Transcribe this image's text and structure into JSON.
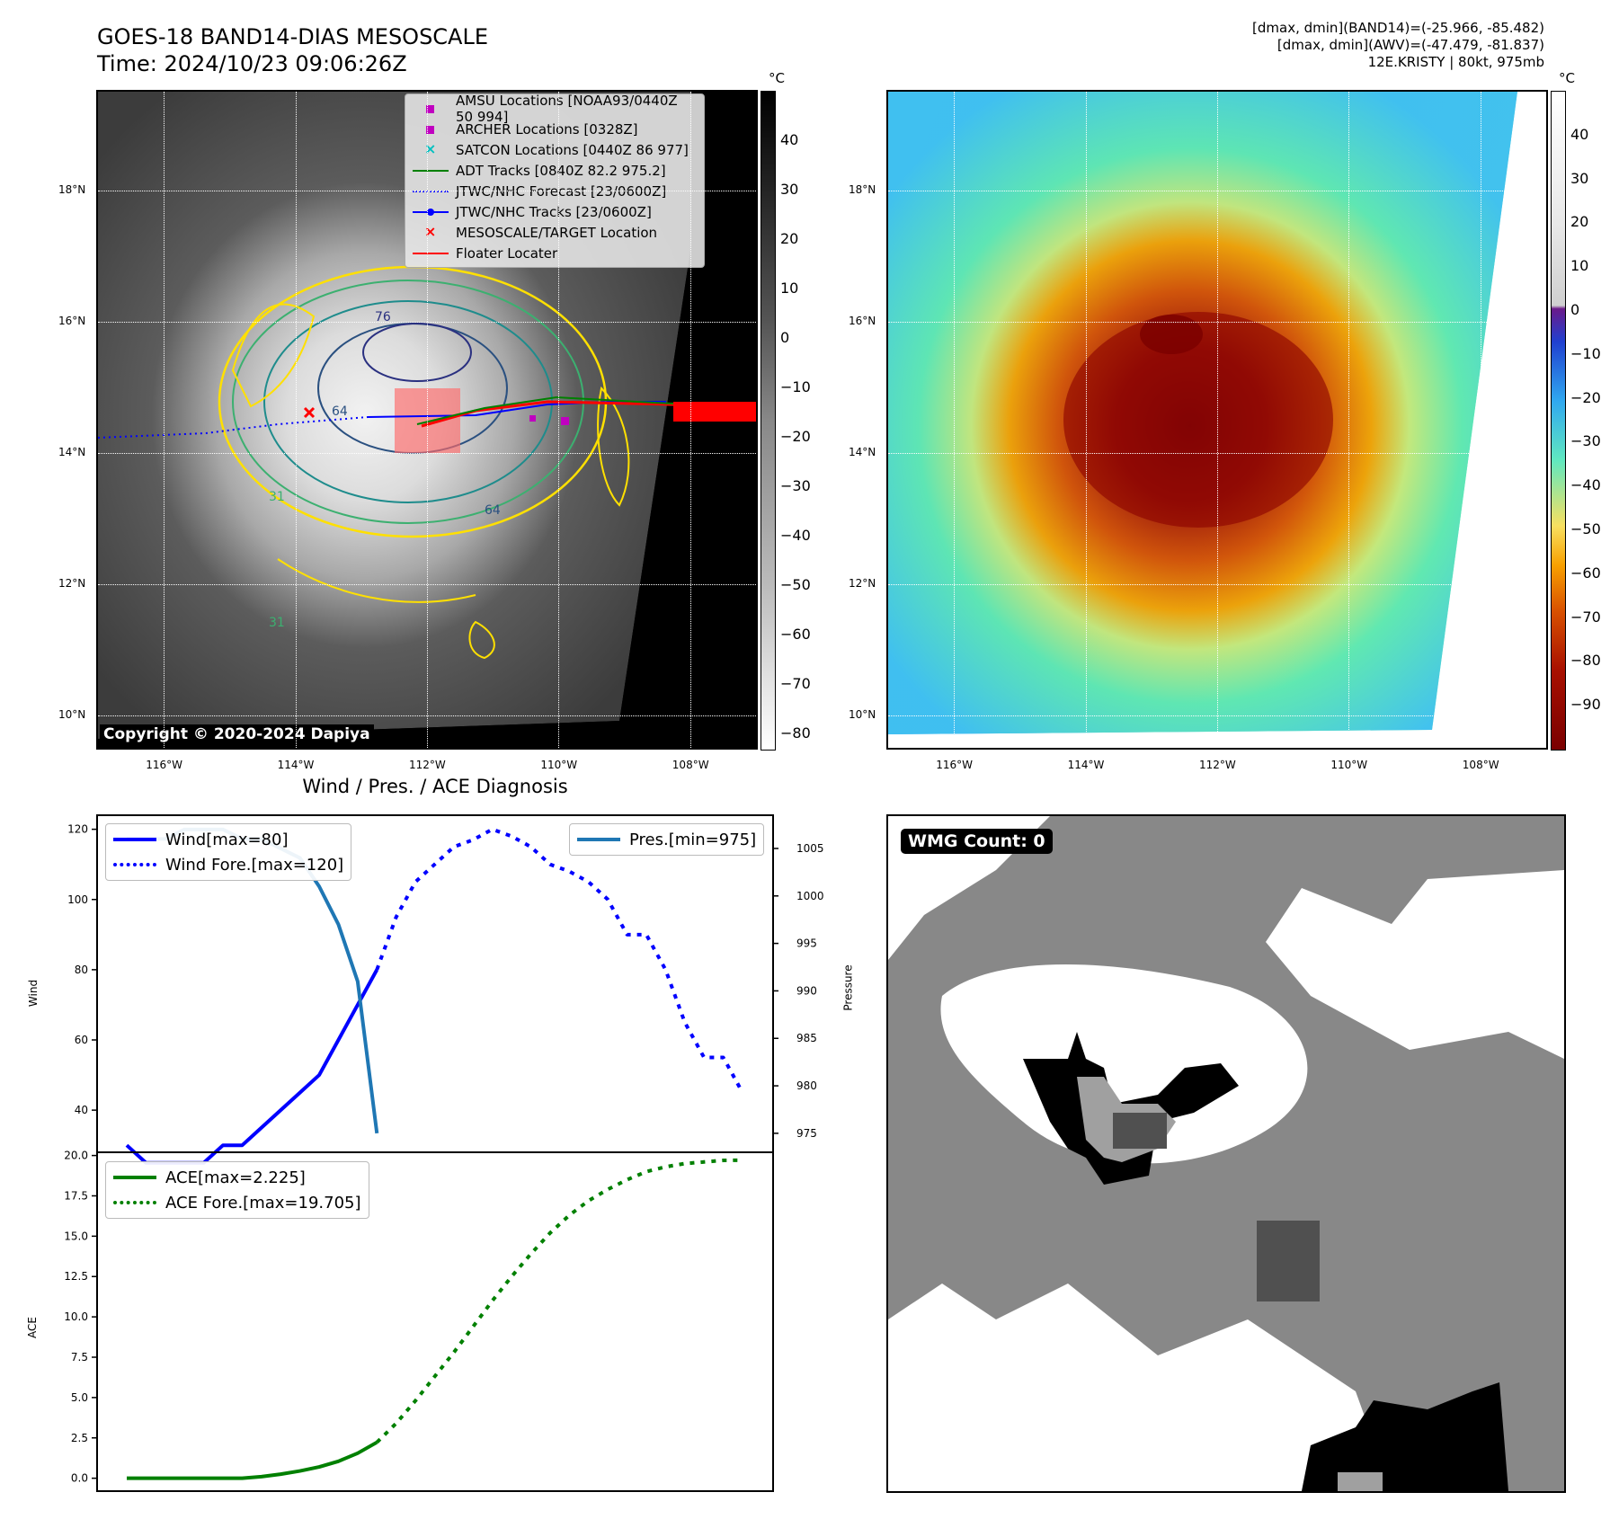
{
  "header": {
    "title_line1": "GOES-18 BAND14-DIAS MESOSCALE",
    "title_line2": "Time: 2024/10/23 09:06:26Z",
    "right_line1": "[dmax, dmin](BAND14)=(-25.966, -85.482)",
    "right_line2": "[dmax, dmin](AWV)=(-47.479, -81.837)",
    "right_line3": "12E.KRISTY | 80kt, 975mb"
  },
  "map": {
    "lat_labels": [
      "18°N",
      "16°N",
      "14°N",
      "12°N",
      "10°N"
    ],
    "lat_values": [
      18,
      16,
      14,
      12,
      10
    ],
    "lon_labels": [
      "116°W",
      "114°W",
      "112°W",
      "110°W",
      "108°W"
    ],
    "lon_values": [
      -116,
      -114,
      -112,
      -110,
      -108
    ],
    "lat_range": [
      9.5,
      19.5
    ],
    "lon_range": [
      -117,
      -107
    ],
    "copyright": "Copyright © 2020-2024 Dapiya",
    "contour_labels": [
      "76",
      "64",
      "64",
      "31",
      "31"
    ],
    "legend": [
      {
        "label": "AMSU Locations [NOAA93/0440Z 50 994]",
        "color": "#c000c0",
        "marker": "square"
      },
      {
        "label": "ARCHER Locations [0328Z]",
        "color": "#c000c0",
        "marker": "square"
      },
      {
        "label": "SATCON Locations [0440Z 86 977]",
        "color": "#00c0c0",
        "marker": "x"
      },
      {
        "label": "ADT Tracks [0840Z 82.2 975.2]",
        "color": "#008000",
        "marker": "line"
      },
      {
        "label": "JTWC/NHC Forecast [23/0600Z]",
        "color": "#0000ff",
        "marker": "dotted"
      },
      {
        "label": "JTWC/NHC Tracks [23/0600Z]",
        "color": "#0000ff",
        "marker": "line-dot"
      },
      {
        "label": "MESOSCALE/TARGET Location",
        "color": "#ff0000",
        "marker": "x"
      },
      {
        "label": "Floater Locater",
        "color": "#ff0000",
        "marker": "line"
      }
    ]
  },
  "colorbars": {
    "unit": "°C",
    "gray_ticks": [
      "40",
      "30",
      "20",
      "10",
      "0",
      "−10",
      "−20",
      "−30",
      "−40",
      "−50",
      "−60",
      "−70",
      "−80"
    ],
    "gray_tick_values": [
      40,
      30,
      20,
      10,
      0,
      -10,
      -20,
      -30,
      -40,
      -50,
      -60,
      -70,
      -80
    ],
    "gray_range": [
      -83,
      50
    ],
    "color_ticks": [
      "40",
      "30",
      "20",
      "10",
      "0",
      "−10",
      "−20",
      "−30",
      "−40",
      "−50",
      "−60",
      "−70",
      "−80",
      "−90"
    ],
    "color_tick_values": [
      40,
      30,
      20,
      10,
      0,
      -10,
      -20,
      -30,
      -40,
      -50,
      -60,
      -70,
      -80,
      -90
    ],
    "color_range": [
      -100,
      50
    ]
  },
  "chart_data": [
    {
      "type": "line",
      "title": "Wind / Pres. / ACE Diagnosis",
      "ylabel": "Wind",
      "y2label": "Pressure",
      "ylim": [
        28,
        124
      ],
      "y2lim": [
        973,
        1008.5
      ],
      "yticks": [
        40,
        60,
        80,
        100,
        120
      ],
      "y2ticks": [
        975,
        980,
        985,
        990,
        995,
        1000,
        1005
      ],
      "x_count": 33,
      "series": [
        {
          "name": "Wind[max=80]",
          "axis": "left",
          "style": "solid",
          "color": "#0000ff",
          "x": [
            0,
            1,
            2,
            3,
            4,
            5,
            6,
            7,
            8,
            9,
            10,
            11,
            12,
            13
          ],
          "values": [
            30,
            25,
            25,
            25,
            25,
            30,
            30,
            35,
            40,
            45,
            50,
            60,
            70,
            80
          ]
        },
        {
          "name": "Wind Fore.[max=120]",
          "axis": "left",
          "style": "dotted",
          "color": "#0000ff",
          "x": [
            13,
            14,
            15,
            16,
            17,
            18,
            19,
            20,
            21,
            22,
            23,
            24,
            25,
            26,
            27,
            28,
            29,
            30,
            31,
            32
          ],
          "values": [
            80,
            95,
            105,
            110,
            115,
            117,
            120,
            118,
            115,
            110,
            108,
            105,
            100,
            90,
            90,
            80,
            65,
            55,
            55,
            45
          ]
        },
        {
          "name": "Pres.[min=975]",
          "axis": "right",
          "style": "solid",
          "color": "#1f77b4",
          "x": [
            0,
            1,
            2,
            3,
            4,
            5,
            6,
            7,
            8,
            9,
            10,
            11,
            12,
            13
          ],
          "values": [
            1006,
            1006,
            1006,
            1007,
            1007,
            1007,
            1006,
            1006,
            1005,
            1004,
            1001,
            997,
            991,
            975
          ]
        }
      ]
    },
    {
      "type": "line",
      "ylabel": "ACE",
      "ylim": [
        -0.8,
        20.2
      ],
      "yticks": [
        "0.0",
        "2.5",
        "5.0",
        "7.5",
        "10.0",
        "12.5",
        "15.0",
        "17.5",
        "20.0"
      ],
      "ytick_values": [
        0,
        2.5,
        5,
        7.5,
        10,
        12.5,
        15,
        17.5,
        20
      ],
      "x_count": 33,
      "series": [
        {
          "name": "ACE[max=2.225]",
          "style": "solid",
          "color": "#008000",
          "x": [
            0,
            1,
            2,
            3,
            4,
            5,
            6,
            7,
            8,
            9,
            10,
            11,
            12,
            13
          ],
          "values": [
            0,
            0,
            0,
            0,
            0,
            0,
            0,
            0.1,
            0.25,
            0.45,
            0.7,
            1.05,
            1.55,
            2.225
          ]
        },
        {
          "name": "ACE Fore.[max=19.705]",
          "style": "dotted",
          "color": "#008000",
          "x": [
            13,
            14,
            15,
            16,
            17,
            18,
            19,
            20,
            21,
            22,
            23,
            24,
            25,
            26,
            27,
            28,
            29,
            30,
            31,
            32
          ],
          "values": [
            2.225,
            3.4,
            4.8,
            6.3,
            7.8,
            9.4,
            11.0,
            12.5,
            13.9,
            15.2,
            16.3,
            17.2,
            17.9,
            18.5,
            19.0,
            19.3,
            19.5,
            19.6,
            19.7,
            19.705
          ]
        }
      ]
    }
  ],
  "wmg": {
    "label": "WMG Count: 0"
  }
}
